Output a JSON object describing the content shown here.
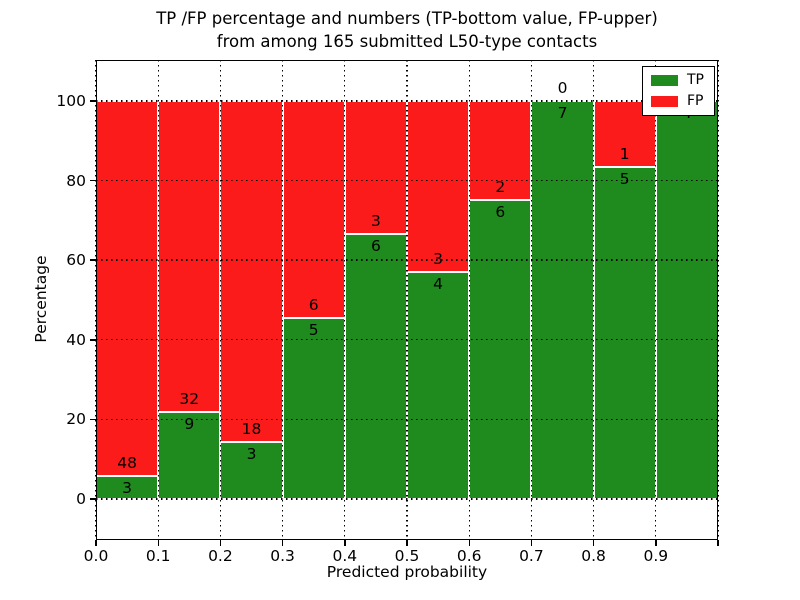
{
  "title": {
    "line1": "TP /FP percentage and numbers (TP-bottom value, FP-upper)",
    "line2": "from among 165 submitted L50-type contacts"
  },
  "chart_data": {
    "type": "bar",
    "stacked": true,
    "normalized_to_percent": true,
    "title": "TP /FP percentage and numbers (TP-bottom value, FP-upper) from among 165 submitted L50-type contacts",
    "total_contacts": 165,
    "xlabel": "Predicted probability",
    "ylabel": "Percentage",
    "bin_edges": [
      0.0,
      0.1,
      0.2,
      0.3,
      0.4,
      0.5,
      0.6,
      0.7,
      0.8,
      0.9,
      1.0
    ],
    "categories": [
      "0.0-0.1",
      "0.1-0.2",
      "0.2-0.3",
      "0.3-0.4",
      "0.4-0.5",
      "0.5-0.6",
      "0.6-0.7",
      "0.7-0.8",
      "0.8-0.9",
      "0.9-1.0"
    ],
    "series": [
      {
        "name": "TP",
        "color": "#1f8b1f",
        "values": [
          3,
          9,
          3,
          5,
          6,
          4,
          6,
          7,
          5,
          4
        ]
      },
      {
        "name": "FP",
        "color": "#fb1b1b",
        "values": [
          48,
          32,
          18,
          6,
          3,
          3,
          2,
          0,
          1,
          0
        ]
      }
    ],
    "tp_percentages": [
      5.88,
      21.95,
      14.29,
      45.45,
      66.67,
      57.14,
      75.0,
      100.0,
      83.33,
      100.0
    ],
    "bar_labels": {
      "tp": [
        "3",
        "9",
        "3",
        "5",
        "6",
        "4",
        "6",
        "7",
        "5",
        "4"
      ],
      "fp": [
        "48",
        "32",
        "18",
        "6",
        "3",
        "3",
        "2",
        "0",
        "1",
        ""
      ]
    },
    "x_tick_positions": [
      0.0,
      0.1,
      0.2,
      0.3,
      0.4,
      0.5,
      0.6,
      0.7,
      0.8,
      0.9,
      1.0
    ],
    "x_tick_labels": [
      "0.0",
      "0.1",
      "0.2",
      "0.3",
      "0.4",
      "0.5",
      "0.6",
      "0.7",
      "0.8",
      "0.9",
      ""
    ],
    "y_ticks": [
      0,
      20,
      40,
      60,
      80,
      100
    ],
    "y_tick_labels": [
      "0",
      "20",
      "40",
      "60",
      "80",
      "100"
    ],
    "xlim": [
      0.0,
      1.0
    ],
    "ylim": [
      -10.3,
      110.3
    ],
    "grid": "dotted",
    "grid_color": "#000000",
    "bar_edge_color": "#ffffff",
    "legend": {
      "position": "upper right",
      "entries": [
        {
          "label": "TP",
          "color": "#1f8b1f"
        },
        {
          "label": "FP",
          "color": "#fb1b1b"
        }
      ]
    }
  }
}
